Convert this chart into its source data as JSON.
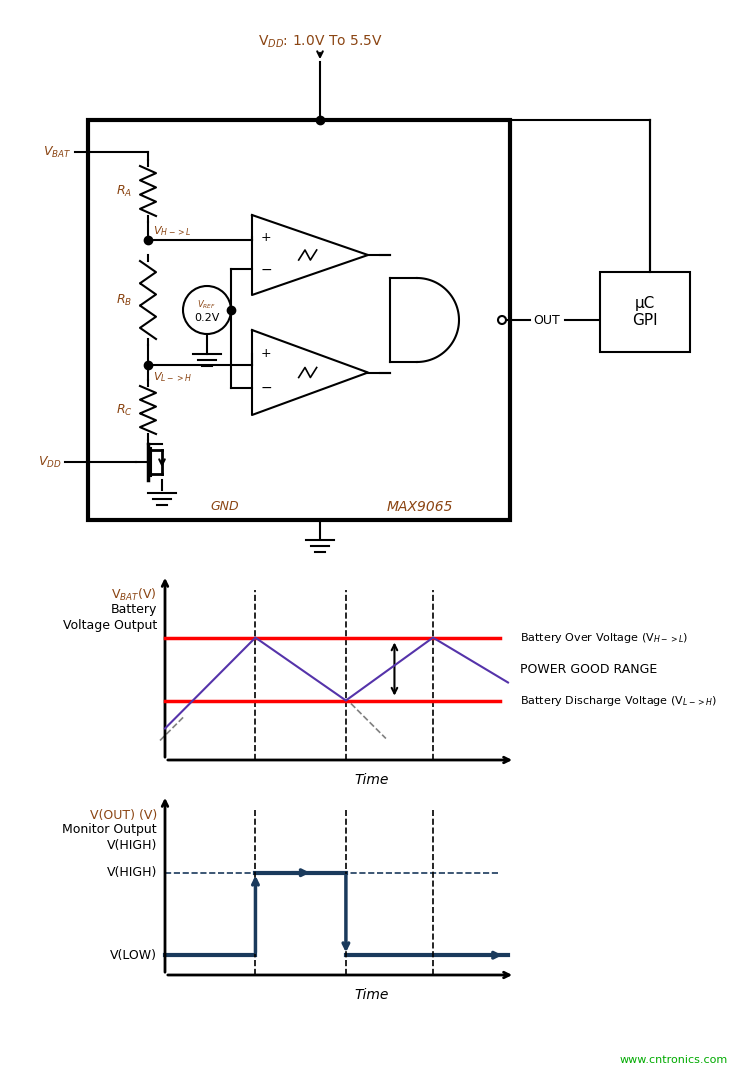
{
  "bg_color": "#ffffff",
  "vdd_text": "V$_{DD}$: 1.0V To 5.5V",
  "vdd_color": "#8B4513",
  "vbat_label": "V$_{BAT}$",
  "ra_label": "R$_{A}$",
  "rb_label": "R$_{B}$",
  "rc_label": "R$_{C}$",
  "vdd_label": "V$_{DD}$",
  "vref_label": "V$_{REF}$",
  "vref_val": "0.2V",
  "vhl_label": "V$_{H->L}$",
  "vlh_label": "V$_{L->H}$",
  "gnd_label": "GND",
  "max_label": "MAX9065",
  "out_label": "OUT",
  "uc_label": "μC\nGPI",
  "line_color": "#000000",
  "label_color": "#8B4513",
  "g1_title1": "V$_{BAT}$(V)",
  "g1_title2": "Battery",
  "g1_title3": "Voltage Output",
  "g1_xlabel": "Time",
  "g1_label_hi": "Battery Over Voltage (V$_{H->L}$)",
  "g1_label_lo": "Battery Discharge Voltage (V$_{L->H}$)",
  "g1_label_mid": "POWER GOOD RANGE",
  "red_color": "#FF0000",
  "wave_color": "#5533AA",
  "g2_title1": "V(OUT) (V)",
  "g2_title2": "Monitor Output",
  "g2_title3": "V(HIGH)",
  "g2_xlabel": "Time",
  "g2_vhigh_label": "V(HIGH)",
  "g2_vlow_label": "V(LOW)",
  "g2_line_color": "#1a3a5c",
  "watermark": "www.cntronics.com",
  "watermark_color": "#00AA00"
}
